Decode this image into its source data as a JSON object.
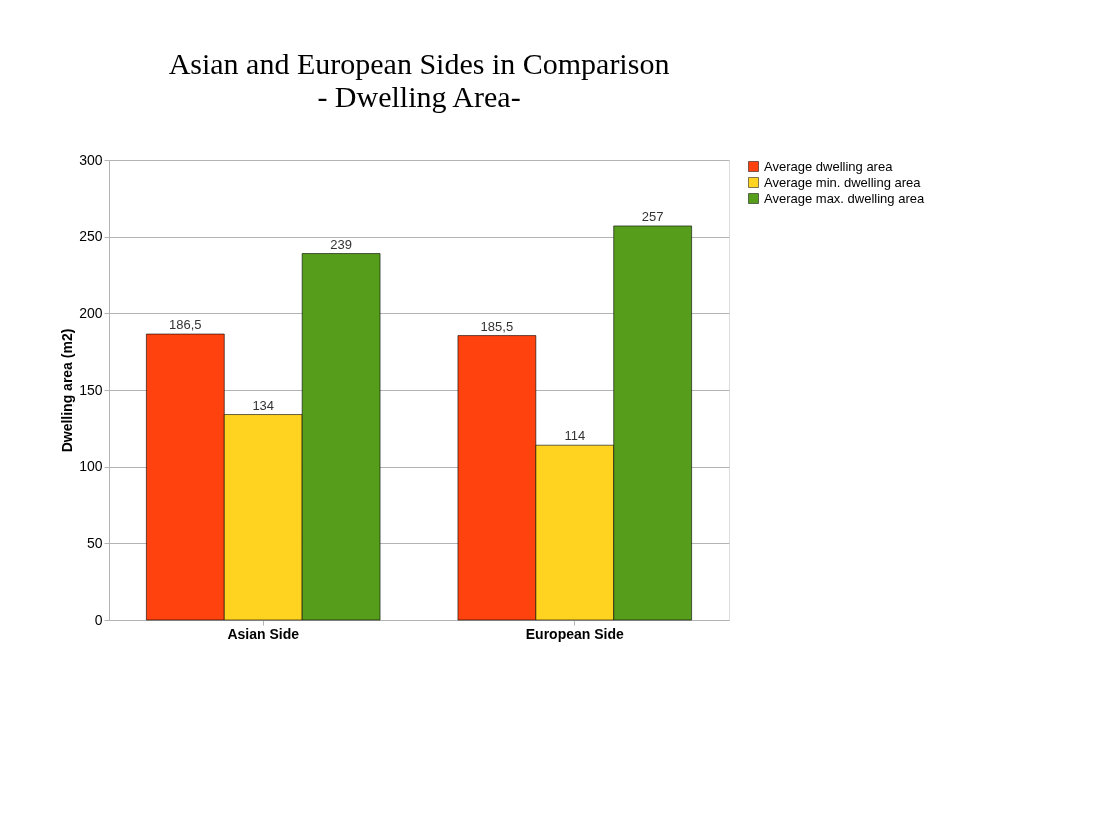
{
  "chart_data": {
    "type": "bar",
    "title": "Asian and European Sides in Comparison",
    "subtitle": "- Dwelling Area-",
    "ylabel": "Dwelling area (m2)",
    "categories": [
      "Asian Side",
      "European Side"
    ],
    "series": [
      {
        "name": "Average dwelling area",
        "color": "#ff420e",
        "values": [
          186.5,
          185.5
        ],
        "value_labels": [
          "186,5",
          "185,5"
        ]
      },
      {
        "name": "Average min. dwelling area",
        "color": "#ffd320",
        "values": [
          134,
          114
        ],
        "value_labels": [
          "134",
          "114"
        ]
      },
      {
        "name": "Average max. dwelling area",
        "color": "#579d1c",
        "values": [
          239,
          257
        ],
        "value_labels": [
          "239",
          "257"
        ]
      }
    ],
    "ylim": [
      0,
      300
    ],
    "yticks": [
      0,
      50,
      100,
      150,
      200,
      250,
      300
    ],
    "grid": "y",
    "legend": "right"
  }
}
